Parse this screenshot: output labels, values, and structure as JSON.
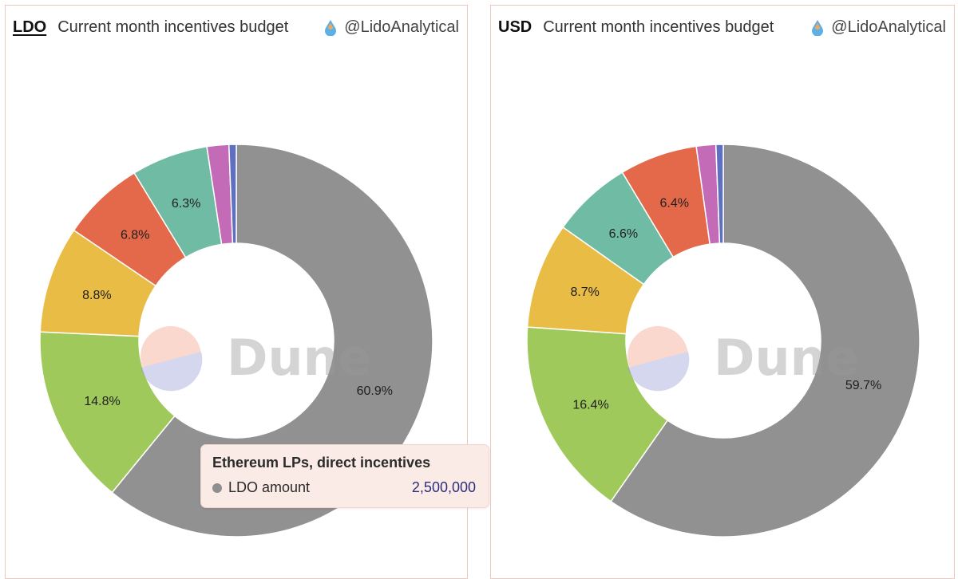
{
  "panels": [
    {
      "unit": "LDO",
      "title": "Current month incentives budget",
      "handle": "@LidoAnalytical"
    },
    {
      "unit": "USD",
      "title": "Current month incentives budget",
      "handle": "@LidoAnalytical"
    }
  ],
  "watermark": "Dune",
  "tooltip": {
    "title": "Ethereum LPs, direct incentives",
    "series": "LDO amount",
    "value": "2,500,000",
    "dot_color": "#8f8f8f"
  },
  "chart_data": [
    {
      "type": "pie",
      "donut": true,
      "unit": "LDO",
      "slices": [
        {
          "label": "60.9%",
          "value": 60.9,
          "color": "#919191"
        },
        {
          "label": "14.8%",
          "value": 14.8,
          "color": "#a0c95b"
        },
        {
          "label": "8.8%",
          "value": 8.8,
          "color": "#e9bc45"
        },
        {
          "label": "6.8%",
          "value": 6.8,
          "color": "#e4684a"
        },
        {
          "label": "6.3%",
          "value": 6.3,
          "color": "#6fbba3"
        },
        {
          "label": "",
          "value": 1.8,
          "color": "#c46bb8"
        },
        {
          "label": "",
          "value": 0.6,
          "color": "#6070c0"
        }
      ]
    },
    {
      "type": "pie",
      "donut": true,
      "unit": "USD",
      "slices": [
        {
          "label": "59.7%",
          "value": 59.7,
          "color": "#919191"
        },
        {
          "label": "16.4%",
          "value": 16.4,
          "color": "#a0c95b"
        },
        {
          "label": "8.7%",
          "value": 8.7,
          "color": "#e9bc45"
        },
        {
          "label": "6.6%",
          "value": 6.6,
          "color": "#6fbba3"
        },
        {
          "label": "6.4%",
          "value": 6.4,
          "color": "#e4684a"
        },
        {
          "label": "",
          "value": 1.6,
          "color": "#c46bb8"
        },
        {
          "label": "",
          "value": 0.6,
          "color": "#6070c0"
        }
      ]
    }
  ]
}
